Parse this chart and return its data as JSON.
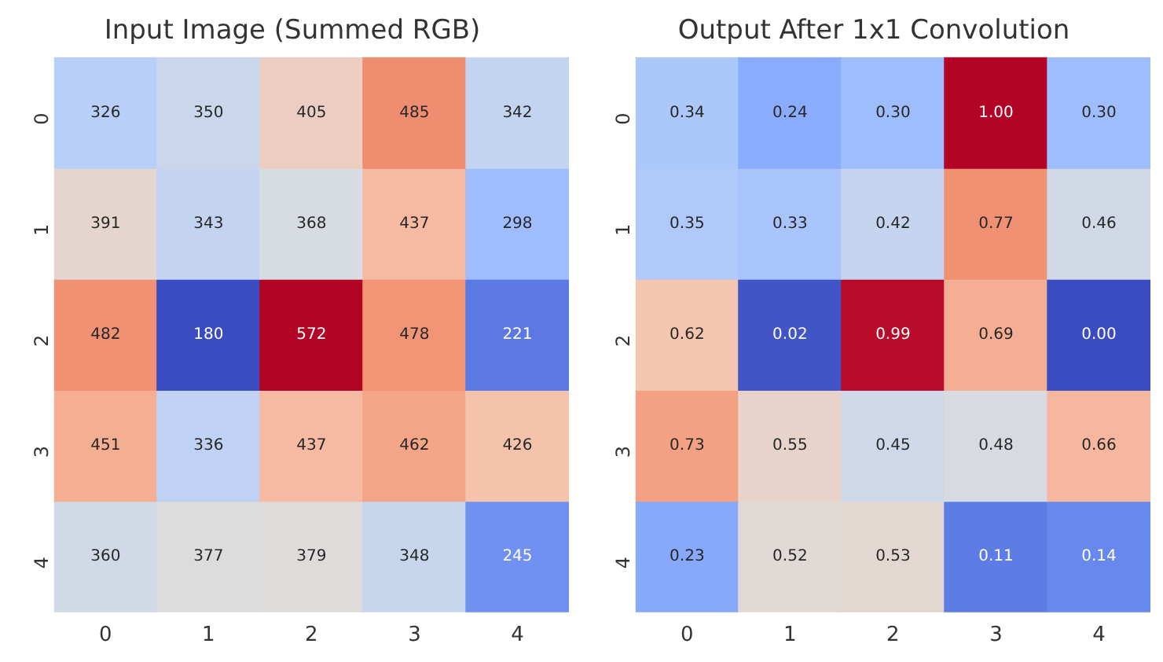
{
  "chart_data": [
    {
      "type": "heatmap",
      "title": "Input Image (Summed RGB)",
      "categories": [
        "0",
        "1",
        "2",
        "3",
        "4"
      ],
      "y_categories": [
        "0",
        "1",
        "2",
        "3",
        "4"
      ],
      "cells": [
        [
          326,
          350,
          405,
          485,
          342
        ],
        [
          391,
          343,
          368,
          437,
          298
        ],
        [
          482,
          180,
          572,
          478,
          221
        ],
        [
          451,
          336,
          437,
          462,
          426
        ],
        [
          360,
          377,
          379,
          348,
          245
        ]
      ],
      "data_labels": true
    },
    {
      "type": "heatmap",
      "title": "Output After 1x1 Convolution",
      "categories": [
        "0",
        "1",
        "2",
        "3",
        "4"
      ],
      "y_categories": [
        "0",
        "1",
        "2",
        "3",
        "4"
      ],
      "cells": [
        [
          0.34,
          0.24,
          0.3,
          1,
          0.3
        ],
        [
          0.35,
          0.33,
          0.42,
          0.77,
          0.46
        ],
        [
          0.62,
          0.02,
          0.99,
          0.69,
          0
        ],
        [
          0.73,
          0.55,
          0.45,
          0.48,
          0.66
        ],
        [
          0.23,
          0.52,
          0.53,
          0.11,
          0.14
        ]
      ],
      "cell_labels": [
        [
          "0.34",
          "0.24",
          "0.30",
          "1.00",
          "0.30"
        ],
        [
          "0.35",
          "0.33",
          "0.42",
          "0.77",
          "0.46"
        ],
        [
          "0.62",
          "0.02",
          "0.99",
          "0.69",
          "0.00"
        ],
        [
          "0.73",
          "0.55",
          "0.45",
          "0.48",
          "0.66"
        ],
        [
          "0.23",
          "0.52",
          "0.53",
          "0.11",
          "0.14"
        ]
      ]
    }
  ]
}
